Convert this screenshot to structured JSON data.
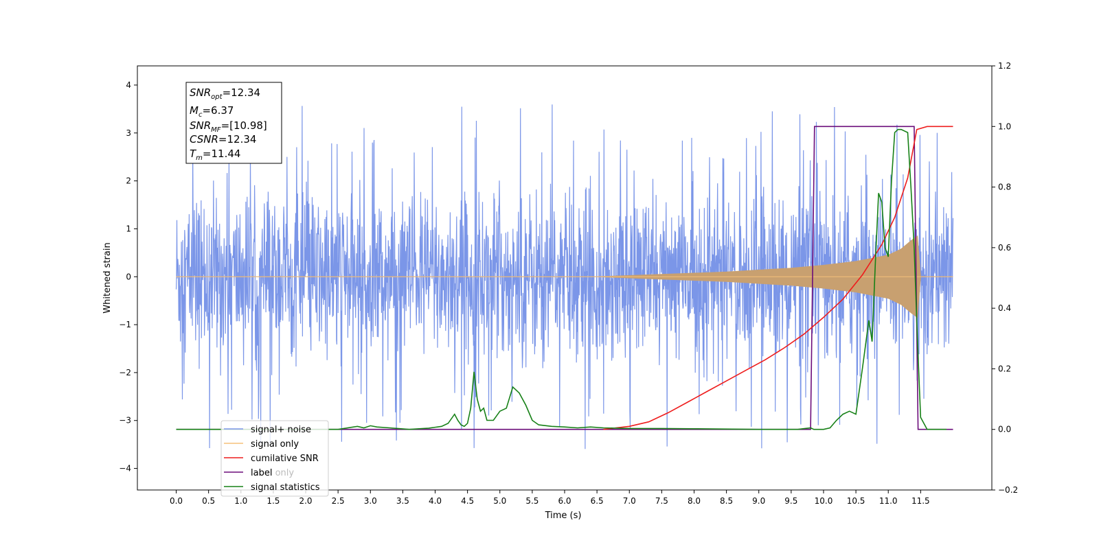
{
  "chart_data": {
    "type": "line",
    "xlabel": "Time (s)",
    "ylabel": "Whitened strain",
    "xlim": [
      -0.6,
      12.6
    ],
    "ylim": [
      -4.45,
      4.4
    ],
    "y2lim": [
      -0.2,
      1.2
    ],
    "x_ticks": [
      "0.0",
      "0.5",
      "1.0",
      "1.5",
      "2.0",
      "2.5",
      "3.0",
      "3.5",
      "4.0",
      "4.5",
      "5.0",
      "5.5",
      "6.0",
      "6.5",
      "7.0",
      "7.5",
      "8.0",
      "8.5",
      "9.0",
      "9.5",
      "10.0",
      "10.5",
      "11.0",
      "11.5"
    ],
    "y_ticks": [
      "4",
      "3",
      "2",
      "1",
      "0",
      "−1",
      "−2",
      "−3",
      "−4"
    ],
    "y2_ticks": [
      "1.2",
      "1.0",
      "0.8",
      "0.6",
      "0.4",
      "0.2",
      "0.0",
      "−0.2"
    ],
    "grid": false,
    "legend_position": "lower-left",
    "annotation": {
      "snr_opt": "=12.34",
      "mc": "=6.37",
      "snr_mf": "=[10.98]",
      "csnr": "=12.34",
      "tm": "=11.44"
    },
    "series": [
      {
        "name": "signal+ noise",
        "axis": "left",
        "color": "#7b96e8",
        "description_envelope": {
          "x": [
            0.0,
            12.0
          ],
          "typical_range": [
            -1.9,
            2.3
          ],
          "max_peak": 4.02,
          "min_peak": -4.1
        }
      },
      {
        "name": "signal only",
        "axis": "left",
        "color": "#c8a070",
        "envelope": {
          "x": [
            0.0,
            6.5,
            7.5,
            8.5,
            9.0,
            9.5,
            10.0,
            10.5,
            11.0,
            11.2,
            11.35,
            11.45,
            11.5,
            12.0
          ],
          "amplitude": [
            0.0,
            0.0,
            0.05,
            0.1,
            0.14,
            0.18,
            0.24,
            0.32,
            0.45,
            0.58,
            0.75,
            0.85,
            0.0,
            0.0
          ]
        }
      },
      {
        "name": "cumilative SNR",
        "axis": "right",
        "color": "#ee1c1c",
        "x": [
          6.6,
          7.0,
          7.3,
          7.6,
          7.9,
          8.2,
          8.5,
          8.8,
          9.1,
          9.4,
          9.7,
          10.0,
          10.3,
          10.6,
          10.9,
          11.1,
          11.3,
          11.44,
          11.6,
          12.0
        ],
        "y": [
          0.0,
          0.01,
          0.025,
          0.055,
          0.09,
          0.125,
          0.16,
          0.195,
          0.23,
          0.27,
          0.315,
          0.37,
          0.43,
          0.51,
          0.61,
          0.7,
          0.83,
          0.99,
          1.0,
          1.0
        ]
      },
      {
        "name": "label",
        "axis": "right",
        "color": "#6b0c7a",
        "x": [
          0.0,
          9.8,
          9.86,
          11.4,
          11.46,
          12.0
        ],
        "y": [
          0.0,
          0.0,
          1.0,
          1.0,
          0.0,
          0.0
        ]
      },
      {
        "name": "signal statistics",
        "axis": "right",
        "color": "#168016",
        "x": [
          0.0,
          2.5,
          2.8,
          2.9,
          3.0,
          3.1,
          3.3,
          3.6,
          3.9,
          4.1,
          4.2,
          4.3,
          4.35,
          4.4,
          4.45,
          4.5,
          4.55,
          4.6,
          4.65,
          4.7,
          4.75,
          4.8,
          4.9,
          5.0,
          5.1,
          5.2,
          5.3,
          5.4,
          5.5,
          5.6,
          5.8,
          6.0,
          6.2,
          6.4,
          6.6,
          6.8,
          7.0,
          7.5,
          8.0,
          9.0,
          9.6,
          9.8,
          9.85,
          9.9,
          10.0,
          10.1,
          10.2,
          10.3,
          10.4,
          10.5,
          10.6,
          10.65,
          10.7,
          10.75,
          10.8,
          10.85,
          10.9,
          10.95,
          11.0,
          11.05,
          11.1,
          11.15,
          11.2,
          11.3,
          11.35,
          11.4,
          11.45,
          11.5,
          11.6,
          11.9
        ],
        "y": [
          0.0,
          0.0,
          0.01,
          0.005,
          0.012,
          0.008,
          0.005,
          0.0,
          0.004,
          0.01,
          0.02,
          0.05,
          0.03,
          0.015,
          0.01,
          0.02,
          0.07,
          0.19,
          0.1,
          0.06,
          0.07,
          0.03,
          0.03,
          0.06,
          0.07,
          0.14,
          0.12,
          0.08,
          0.03,
          0.015,
          0.01,
          0.008,
          0.005,
          0.008,
          0.005,
          0.004,
          0.003,
          0.003,
          0.002,
          0.0,
          0.0,
          0.005,
          0.0,
          0.0,
          0.0,
          0.005,
          0.03,
          0.05,
          0.06,
          0.05,
          0.2,
          0.28,
          0.36,
          0.29,
          0.55,
          0.78,
          0.75,
          0.6,
          0.57,
          0.82,
          0.98,
          0.99,
          0.99,
          0.98,
          0.8,
          0.6,
          0.3,
          0.04,
          0.0,
          0.0
        ]
      }
    ]
  },
  "legend": {
    "item1": "signal+ noise",
    "item2": "signal only",
    "item3": "cumilative SNR",
    "item4": "label",
    "item5": "signal statistics",
    "ghost1": "signal only",
    "ghost2": "label only"
  }
}
